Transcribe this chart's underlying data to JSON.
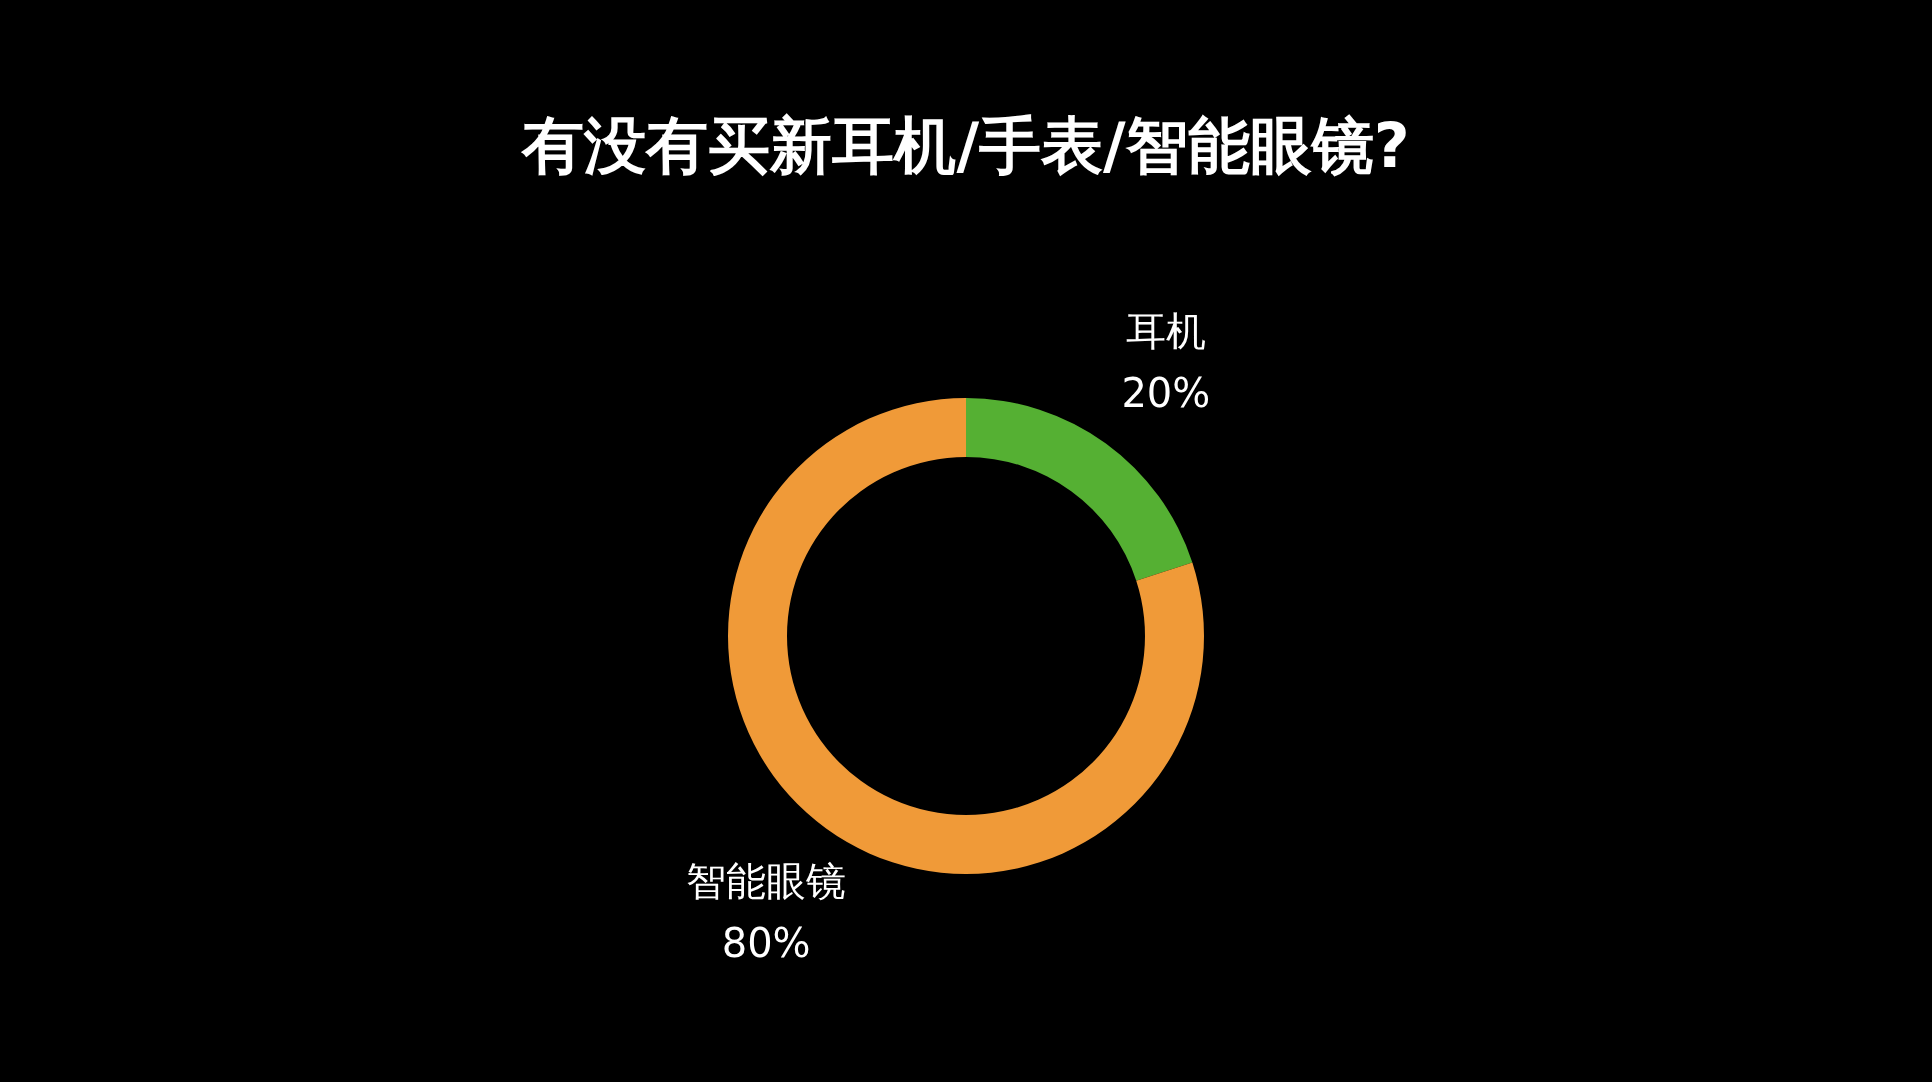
{
  "chart_data": {
    "type": "donut",
    "title": "有没有买新耳机/手表/智能眼镜?",
    "categories": [
      "耳机",
      "智能眼镜"
    ],
    "values": [
      20,
      80
    ],
    "colors": [
      "#55b033",
      "#f09a38"
    ],
    "value_labels": [
      "20%",
      "80%"
    ],
    "legend": false
  }
}
